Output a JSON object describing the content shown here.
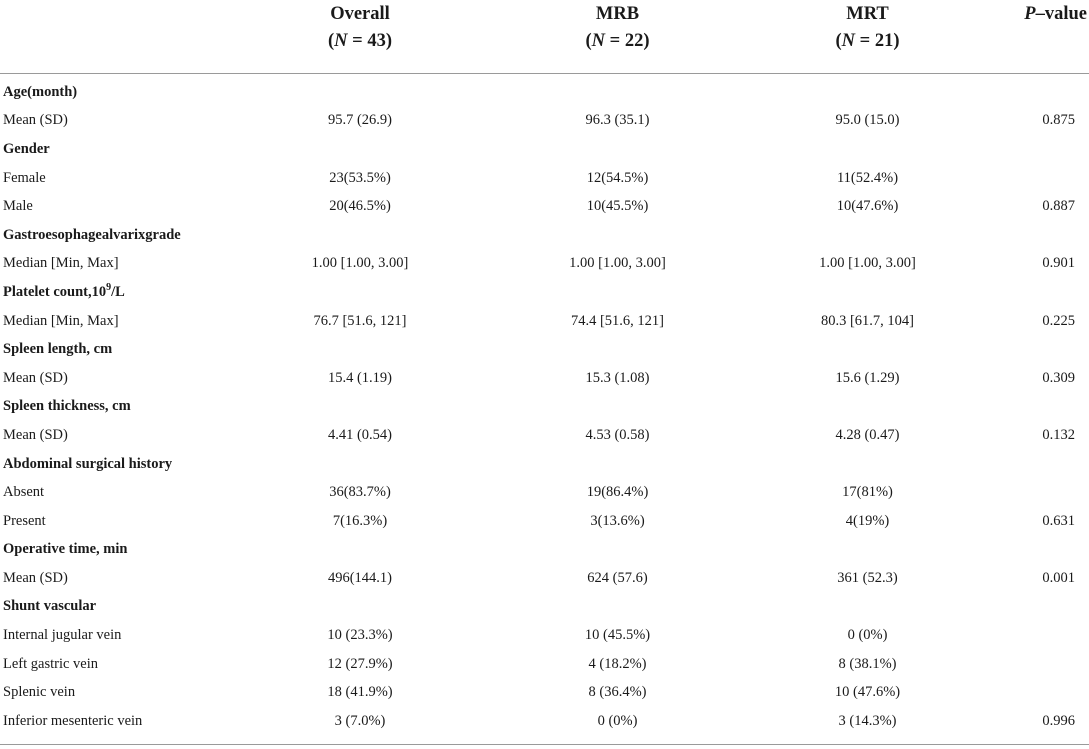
{
  "columns": {
    "overall": {
      "label": "Overall",
      "n": "(N = 43)",
      "n_pre": "(",
      "n_var": "N",
      "n_post": " = 43)"
    },
    "mrb": {
      "label": "MRB",
      "n_pre": "(",
      "n_var": "N",
      "n_post": " = 22)"
    },
    "mrt": {
      "label": "MRT",
      "n_pre": "(",
      "n_var": "N",
      "n_post": " = 21)"
    },
    "pvalue": {
      "label_italic": "P",
      "label_rest": "–value"
    }
  },
  "sections": [
    {
      "title": "Age(month)",
      "rows": [
        {
          "label": "Mean (SD)",
          "overall": "95.7 (26.9)",
          "mrb": "96.3 (35.1)",
          "mrt": "95.0 (15.0)",
          "p": "0.875"
        }
      ]
    },
    {
      "title": "Gender",
      "rows": [
        {
          "label": "Female",
          "overall": "23(53.5%)",
          "mrb": "12(54.5%)",
          "mrt": "11(52.4%)",
          "p": ""
        },
        {
          "label": "Male",
          "overall": "20(46.5%)",
          "mrb": "10(45.5%)",
          "mrt": "10(47.6%)",
          "p": "0.887"
        }
      ]
    },
    {
      "title": "Gastroesophagealvarixgrade",
      "rows": [
        {
          "label": "Median [Min, Max]",
          "overall": "1.00 [1.00, 3.00]",
          "mrb": "1.00 [1.00, 3.00]",
          "mrt": "1.00 [1.00, 3.00]",
          "p": "0.901"
        }
      ]
    },
    {
      "title": "Platelet count,10",
      "title_sup": "9",
      "title_post": "/L",
      "rows": [
        {
          "label": "Median [Min, Max]",
          "overall": "76.7 [51.6, 121]",
          "mrb": "74.4 [51.6, 121]",
          "mrt": "80.3 [61.7, 104]",
          "p": "0.225"
        }
      ]
    },
    {
      "title": "Spleen length, cm",
      "rows": [
        {
          "label": "Mean (SD)",
          "overall": "15.4 (1.19)",
          "mrb": "15.3 (1.08)",
          "mrt": "15.6 (1.29)",
          "p": "0.309"
        }
      ]
    },
    {
      "title": "Spleen thickness, cm",
      "rows": [
        {
          "label": "Mean (SD)",
          "overall": "4.41 (0.54)",
          "mrb": "4.53 (0.58)",
          "mrt": "4.28 (0.47)",
          "p": "0.132"
        }
      ]
    },
    {
      "title": "Abdominal surgical history",
      "rows": [
        {
          "label": "Absent",
          "overall": "36(83.7%)",
          "mrb": "19(86.4%)",
          "mrt": "17(81%)",
          "p": ""
        },
        {
          "label": "Present",
          "overall": "7(16.3%)",
          "mrb": "3(13.6%)",
          "mrt": "4(19%)",
          "p": "0.631"
        }
      ]
    },
    {
      "title": "Operative time, min",
      "rows": [
        {
          "label": "Mean (SD)",
          "overall": "496(144.1)",
          "mrb": "624 (57.6)",
          "mrt": "361 (52.3)",
          "p": "0.001"
        }
      ]
    },
    {
      "title": "Shunt vascular",
      "rows": [
        {
          "label": "Internal jugular vein",
          "overall": "10 (23.3%)",
          "mrb": "10 (45.5%)",
          "mrt": "0 (0%)",
          "p": ""
        },
        {
          "label": "Left gastric vein",
          "overall": "12 (27.9%)",
          "mrb": "4 (18.2%)",
          "mrt": "8 (38.1%)",
          "p": ""
        },
        {
          "label": "Splenic vein",
          "overall": "18 (41.9%)",
          "mrb": "8 (36.4%)",
          "mrt": "10 (47.6%)",
          "p": ""
        },
        {
          "label": "Inferior mesenteric vein",
          "overall": "3 (7.0%)",
          "mrb": "0 (0%)",
          "mrt": "3 (14.3%)",
          "p": "0.996"
        }
      ]
    }
  ]
}
